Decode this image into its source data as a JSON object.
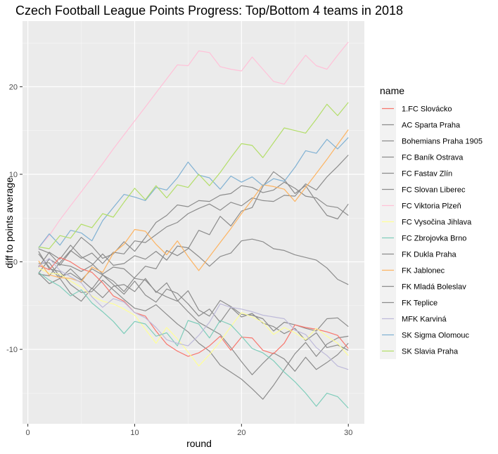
{
  "chart_data": {
    "type": "line",
    "title": "Czech Football League Points Progress: Top/Bottom 4 teams in 2018",
    "xlabel": "round",
    "ylabel": "diff to points average",
    "xlim": [
      -0.5,
      31.5
    ],
    "ylim": [
      -18.5,
      27.5
    ],
    "xticks": [
      0,
      10,
      20,
      30
    ],
    "yticks": [
      -10,
      0,
      10,
      20
    ],
    "grid": true,
    "legend_title": "name",
    "legend_position": "right",
    "series": [
      {
        "name": "1.FC Slovácko",
        "color": "#F8766D",
        "values": [
          -0.4,
          -0.9,
          0.5,
          0,
          -0.8,
          -1.2,
          -2.4,
          -3.9,
          -4.5,
          -5.8,
          -6.2,
          -7.9,
          -9.4,
          -10.2,
          -10.8,
          -10.4,
          -9.6,
          -8.5,
          -10.1,
          -8.6,
          -8.7,
          -10.1,
          -10.5,
          -9.3,
          -7.2,
          -7.5,
          -7.7,
          -8.0,
          -8.4,
          -9.9
        ]
      },
      {
        "name": "AC Sparta Praha",
        "color": "#8c8c8c",
        "values": [
          -1.3,
          0.3,
          -0.4,
          1.2,
          2.8,
          1.8,
          0.4,
          0.9,
          2.3,
          1.2,
          2.8,
          4.5,
          5.3,
          6.5,
          6.3,
          7.0,
          6.9,
          7.6,
          7.8,
          8.7,
          8.5,
          7.9,
          8.2,
          9.1,
          8.4,
          7.5,
          7.3,
          6.4,
          6.2,
          5.3
        ]
      },
      {
        "name": "Bohemians Praha 1905",
        "color": "#8c8c8c",
        "values": [
          0.9,
          -0.6,
          -1.9,
          -0.8,
          -2.0,
          -3.1,
          -1.5,
          -2.6,
          -3.7,
          -2.2,
          -3.8,
          -4.6,
          -3.1,
          -3.6,
          -4.8,
          -6.2,
          -5.4,
          -6.9,
          -5.2,
          -6.3,
          -5.9,
          -7.0,
          -7.4,
          -8.2,
          -7.6,
          -9.0,
          -8.1,
          -9.8,
          -9.5,
          -10.1
        ]
      },
      {
        "name": "FC Baník Ostrava",
        "color": "#8c8c8c",
        "values": [
          -1.4,
          -1.6,
          -0.1,
          1.3,
          0.4,
          1.0,
          -0.2,
          1.1,
          0.9,
          2.4,
          2.2,
          3.1,
          4.0,
          4.5,
          5.5,
          6.1,
          6.6,
          5.9,
          6.8,
          6.4,
          7.3,
          7.0,
          6.9,
          7.6,
          7.5,
          8.9,
          8.2,
          9.7,
          10.9,
          12.2
        ]
      },
      {
        "name": "FC Fastav Zlín",
        "color": "#8c8c8c",
        "values": [
          1.2,
          -0.8,
          -1.1,
          -2.6,
          -3.5,
          -3.4,
          -2.1,
          -3.2,
          -4.3,
          -5.3,
          -5.6,
          -4.9,
          -6.0,
          -7.1,
          -8.0,
          -9.3,
          -10.2,
          -11.8,
          -12.6,
          -13.4,
          -14.5,
          -15.7,
          -14.1,
          -12.3,
          -10.5,
          -9.2,
          -10.8,
          -9.4,
          -8.7,
          -8.5
        ]
      },
      {
        "name": "FC Slovan Liberec",
        "color": "#8c8c8c",
        "values": [
          1.5,
          1.0,
          -0.3,
          -0.5,
          -1.1,
          -0.4,
          0.9,
          -0.4,
          -0.2,
          0.7,
          0.3,
          1.2,
          0.2,
          1.8,
          1.6,
          0.6,
          -0.5,
          0.6,
          1.0,
          2.4,
          2.6,
          2.3,
          1.5,
          1.3,
          0.8,
          0.5,
          0.2,
          -0.7,
          -2.0,
          -2.6
        ]
      },
      {
        "name": "FC Viktoria Plzeň",
        "color": "#FFC1D8",
        "values": [
          1.6,
          3.0,
          4.8,
          6.4,
          8.0,
          9.6,
          11.2,
          12.9,
          14.5,
          16.1,
          17.7,
          19.3,
          20.9,
          22.5,
          22.4,
          24.1,
          23.9,
          22.3,
          22.0,
          21.8,
          23.4,
          22.0,
          20.6,
          20.3,
          22.0,
          23.6,
          22.4,
          22.0,
          23.6,
          25.1
        ]
      },
      {
        "name": "FC Vysočina Jihlava",
        "color": "#FFFF99",
        "values": [
          -0.7,
          -1.3,
          -1.4,
          -2.2,
          -2.9,
          -3.9,
          -4.5,
          -4.8,
          -5.4,
          -6.1,
          -7.7,
          -9.3,
          -7.5,
          -8.8,
          -10.3,
          -11.9,
          -10.6,
          -9.1,
          -7.4,
          -5.8,
          -6.3,
          -6.9,
          -8.3,
          -7.5,
          -8.1,
          -8.9,
          -7.6,
          -8.5,
          -9.3,
          -10.7
        ]
      },
      {
        "name": "FC Zbrojovka Brno",
        "color": "#7FCDBB",
        "values": [
          -1.2,
          -2.1,
          -2.8,
          -3.9,
          -3.2,
          -4.7,
          -5.7,
          -6.8,
          -8.2,
          -6.8,
          -7.1,
          -8.5,
          -8.1,
          -9.6,
          -6.7,
          -7.1,
          -8.7,
          -6.7,
          -7.2,
          -8.5,
          -9.9,
          -10.4,
          -11.3,
          -12.6,
          -13.7,
          -15.0,
          -16.5,
          -15.0,
          -15.4,
          -16.7
        ]
      },
      {
        "name": "FK Dukla Praha",
        "color": "#8c8c8c",
        "values": [
          -0.6,
          1.1,
          0.3,
          1.9,
          0.6,
          -0.2,
          -1.4,
          -0.6,
          -0.8,
          -1.9,
          -2.1,
          -3.4,
          -4.0,
          -4.5,
          -3.3,
          -5.5,
          -6.2,
          -4.4,
          -5.1,
          -6.0,
          -6.1,
          -6.5,
          -7.9,
          -6.9,
          -7.2,
          -7.6,
          -7.9,
          -6.5,
          -6.4,
          -7.4
        ]
      },
      {
        "name": "FK Jablonec",
        "color": "#FDB462",
        "values": [
          0.1,
          -1.5,
          -1.8,
          -1.9,
          -2.3,
          -0.6,
          -1.2,
          1.0,
          2.0,
          3.7,
          3.5,
          2.0,
          0.8,
          2.4,
          0.6,
          -1.0,
          0.6,
          2.2,
          3.8,
          5.5,
          7.1,
          8.8,
          8.6,
          8.3,
          6.9,
          8.5,
          10.1,
          11.7,
          13.4,
          15.1
        ]
      },
      {
        "name": "FK Mladá Boleslav",
        "color": "#8c8c8c",
        "values": [
          -1.3,
          -2.5,
          -1.9,
          -3.6,
          -4.5,
          -3.0,
          -4.1,
          -2.8,
          -2.6,
          -3.4,
          -1.9,
          -3.5,
          -2.4,
          -4.4,
          -5.7,
          -6.9,
          -7.6,
          -8.3,
          -9.8,
          -11.4,
          -12.9,
          -11.6,
          -10.4,
          -11.1,
          -12.5,
          -10.9,
          -12.3,
          -11.5,
          -10.6,
          -9.3
        ]
      },
      {
        "name": "FK Teplice",
        "color": "#8c8c8c",
        "values": [
          -0.2,
          -0.1,
          -1.7,
          -1.3,
          -2.1,
          -0.8,
          -1.5,
          -2.2,
          -3.4,
          -1.8,
          -0.5,
          -0.8,
          1.3,
          0.7,
          1.5,
          3.6,
          3.1,
          5.2,
          4.1,
          5.8,
          6.2,
          8.6,
          10.3,
          9.4,
          7.8,
          8.7,
          6.9,
          5.3,
          4.9,
          6.6
        ]
      },
      {
        "name": "MFK Karviná",
        "color": "#BEBADA",
        "values": [
          -0.5,
          0.4,
          -1.0,
          -1.7,
          -2.4,
          -4.0,
          -5.2,
          -4.2,
          -4.6,
          -5.8,
          -6.4,
          -7.5,
          -8.9,
          -9.3,
          -9.6,
          -8.4,
          -6.9,
          -4.8,
          -5.2,
          -5.4,
          -5.7,
          -6.1,
          -6.3,
          -6.5,
          -7.8,
          -8.3,
          -9.8,
          -10.7,
          -11.9,
          -12.3
        ]
      },
      {
        "name": "SK Sigma Olomouc",
        "color": "#80B1D3",
        "values": [
          1.6,
          3.2,
          1.9,
          3.6,
          3.3,
          2.4,
          4.7,
          6.2,
          7.7,
          7.4,
          7.0,
          8.5,
          8.2,
          9.6,
          11.4,
          9.9,
          9.6,
          8.3,
          9.8,
          9.1,
          9.7,
          8.7,
          9.5,
          9.2,
          10.8,
          12.7,
          12.4,
          14.0,
          12.9,
          14.2
        ]
      },
      {
        "name": "SK Slavia Praha",
        "color": "#B3DE69",
        "values": [
          1.7,
          1.5,
          3.0,
          2.7,
          4.3,
          3.9,
          5.5,
          5.1,
          6.8,
          8.4,
          7.1,
          8.7,
          7.3,
          8.8,
          8.5,
          10.0,
          8.7,
          10.2,
          11.9,
          13.5,
          13.3,
          11.9,
          13.6,
          15.3,
          15.0,
          14.7,
          16.3,
          18.0,
          16.7,
          18.2
        ]
      }
    ]
  }
}
